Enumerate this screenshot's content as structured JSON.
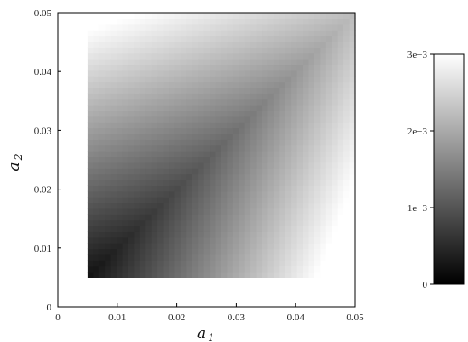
{
  "chart_data": {
    "type": "heatmap",
    "x_axis": {
      "label": "a",
      "label_sub": "1",
      "range": [
        0,
        0.05
      ],
      "ticks": [
        "0",
        "0.01",
        "0.02",
        "0.03",
        "0.04",
        "0.05"
      ]
    },
    "y_axis": {
      "label": "a",
      "label_sub": "2",
      "range": [
        0,
        0.05
      ],
      "ticks": [
        "0",
        "0.01",
        "0.02",
        "0.03",
        "0.04",
        "0.05"
      ]
    },
    "data_extent": {
      "x": [
        0.005,
        0.05
      ],
      "y": [
        0.005,
        0.05
      ]
    },
    "grid_size": 46,
    "colorbar": {
      "range": [
        0,
        0.003
      ],
      "ticks": [
        {
          "value": 0,
          "label": "0"
        },
        {
          "value": 0.001,
          "label": "1e−3"
        },
        {
          "value": 0.002,
          "label": "2e−3"
        },
        {
          "value": 0.003,
          "label": "3e−3"
        }
      ],
      "colormap": [
        "#000000",
        "#ffffff"
      ]
    },
    "value_description_samples": [
      {
        "a1": 0.005,
        "a2": 0.005,
        "value": 0.0
      },
      {
        "a1": 0.05,
        "a2": 0.05,
        "value": 0.0024
      },
      {
        "a1": 0.05,
        "a2": 0.005,
        "value": 0.0029
      },
      {
        "a1": 0.005,
        "a2": 0.05,
        "value": 0.0026
      }
    ],
    "grid": false
  }
}
